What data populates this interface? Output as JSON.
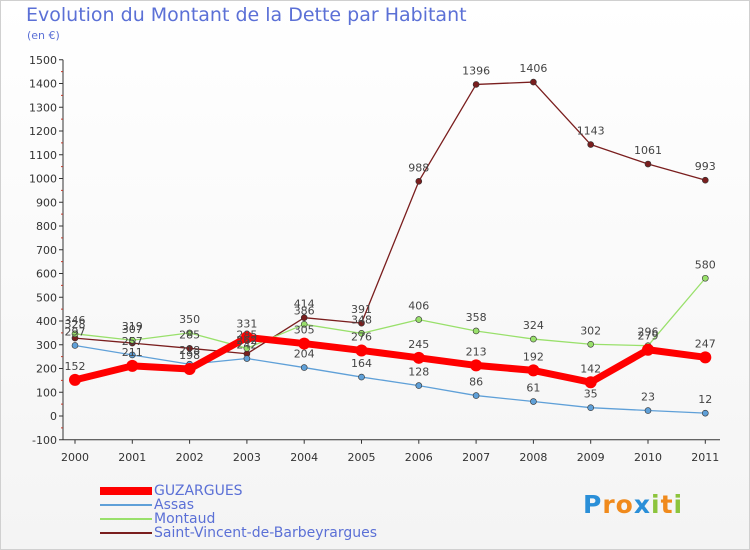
{
  "chart_data": {
    "type": "line",
    "title": "Evolution du Montant de la Dette par Habitant",
    "unit": "(en €)",
    "x": [
      "2000",
      "2001",
      "2002",
      "2003",
      "2004",
      "2005",
      "2006",
      "2007",
      "2008",
      "2009",
      "2010",
      "2011"
    ],
    "ylim": [
      -100,
      1500
    ],
    "yticks": [
      -100,
      0,
      100,
      200,
      300,
      400,
      500,
      600,
      700,
      800,
      900,
      1000,
      1100,
      1200,
      1300,
      1400,
      1500
    ],
    "grid": false,
    "legend_position": "bottom-left",
    "series": [
      {
        "name": "GUZARGUES",
        "color": "#ff0000",
        "values": [
          152,
          211,
          198,
          331,
          305,
          276,
          245,
          213,
          192,
          142,
          279,
          247
        ],
        "labels": [
          "152",
          "211",
          "198",
          "331",
          "305",
          "276",
          "245",
          "213",
          "192",
          "142",
          "279",
          "247"
        ]
      },
      {
        "name": "Assas",
        "color": "#5fa0d8",
        "values": [
          297,
          257,
          218,
          242,
          204,
          164,
          128,
          86,
          61,
          35,
          23,
          12
        ],
        "labels": [
          "297",
          "257",
          "218",
          "242",
          "204",
          "164",
          "128",
          "86",
          "61",
          "35",
          "23",
          "12"
        ]
      },
      {
        "name": "Montaud",
        "color": "#99e06b",
        "values": [
          346,
          319,
          350,
          285,
          386,
          348,
          406,
          358,
          324,
          302,
          296,
          580
        ],
        "labels": [
          "346",
          "319",
          "350",
          "285",
          "386",
          "348",
          "406",
          "358",
          "324",
          "302",
          "296",
          "580"
        ]
      },
      {
        "name": "Saint-Vincent-de-Barbeyrargues",
        "color": "#7a1e1e",
        "values": [
          328,
          307,
          285,
          262,
          414,
          391,
          988,
          1396,
          1406,
          1143,
          1061,
          993
        ],
        "labels": [
          "328",
          "307",
          "285",
          "262",
          "414",
          "391",
          "988",
          "1396",
          "1406",
          "1143",
          "1061",
          "993"
        ]
      }
    ]
  },
  "logo": {
    "letters": [
      "P",
      "r",
      "o",
      "x",
      "i",
      "t",
      "i"
    ],
    "colors": [
      "#2a8fd8",
      "#f08a1c",
      "#f08a1c",
      "#2a8fd8",
      "#8cc43c",
      "#f08a1c",
      "#8cc43c"
    ]
  }
}
